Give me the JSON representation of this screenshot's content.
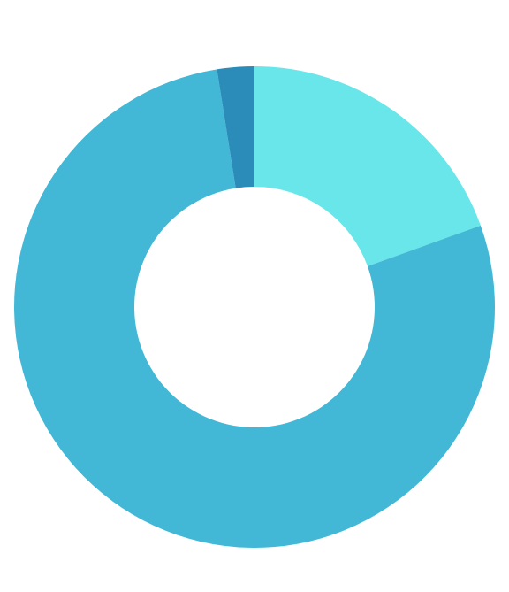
{
  "chart_data": {
    "type": "pie",
    "variant": "donut",
    "title": "",
    "categories": [
      "",
      "",
      ""
    ],
    "values": [
      19.5,
      78.0,
      2.5
    ],
    "colors": [
      "#69e6e9",
      "#42b8d6",
      "#2b8bb9"
    ],
    "start_angle": "top",
    "direction": "clockwise",
    "legend": "none",
    "data_labels": "none"
  }
}
